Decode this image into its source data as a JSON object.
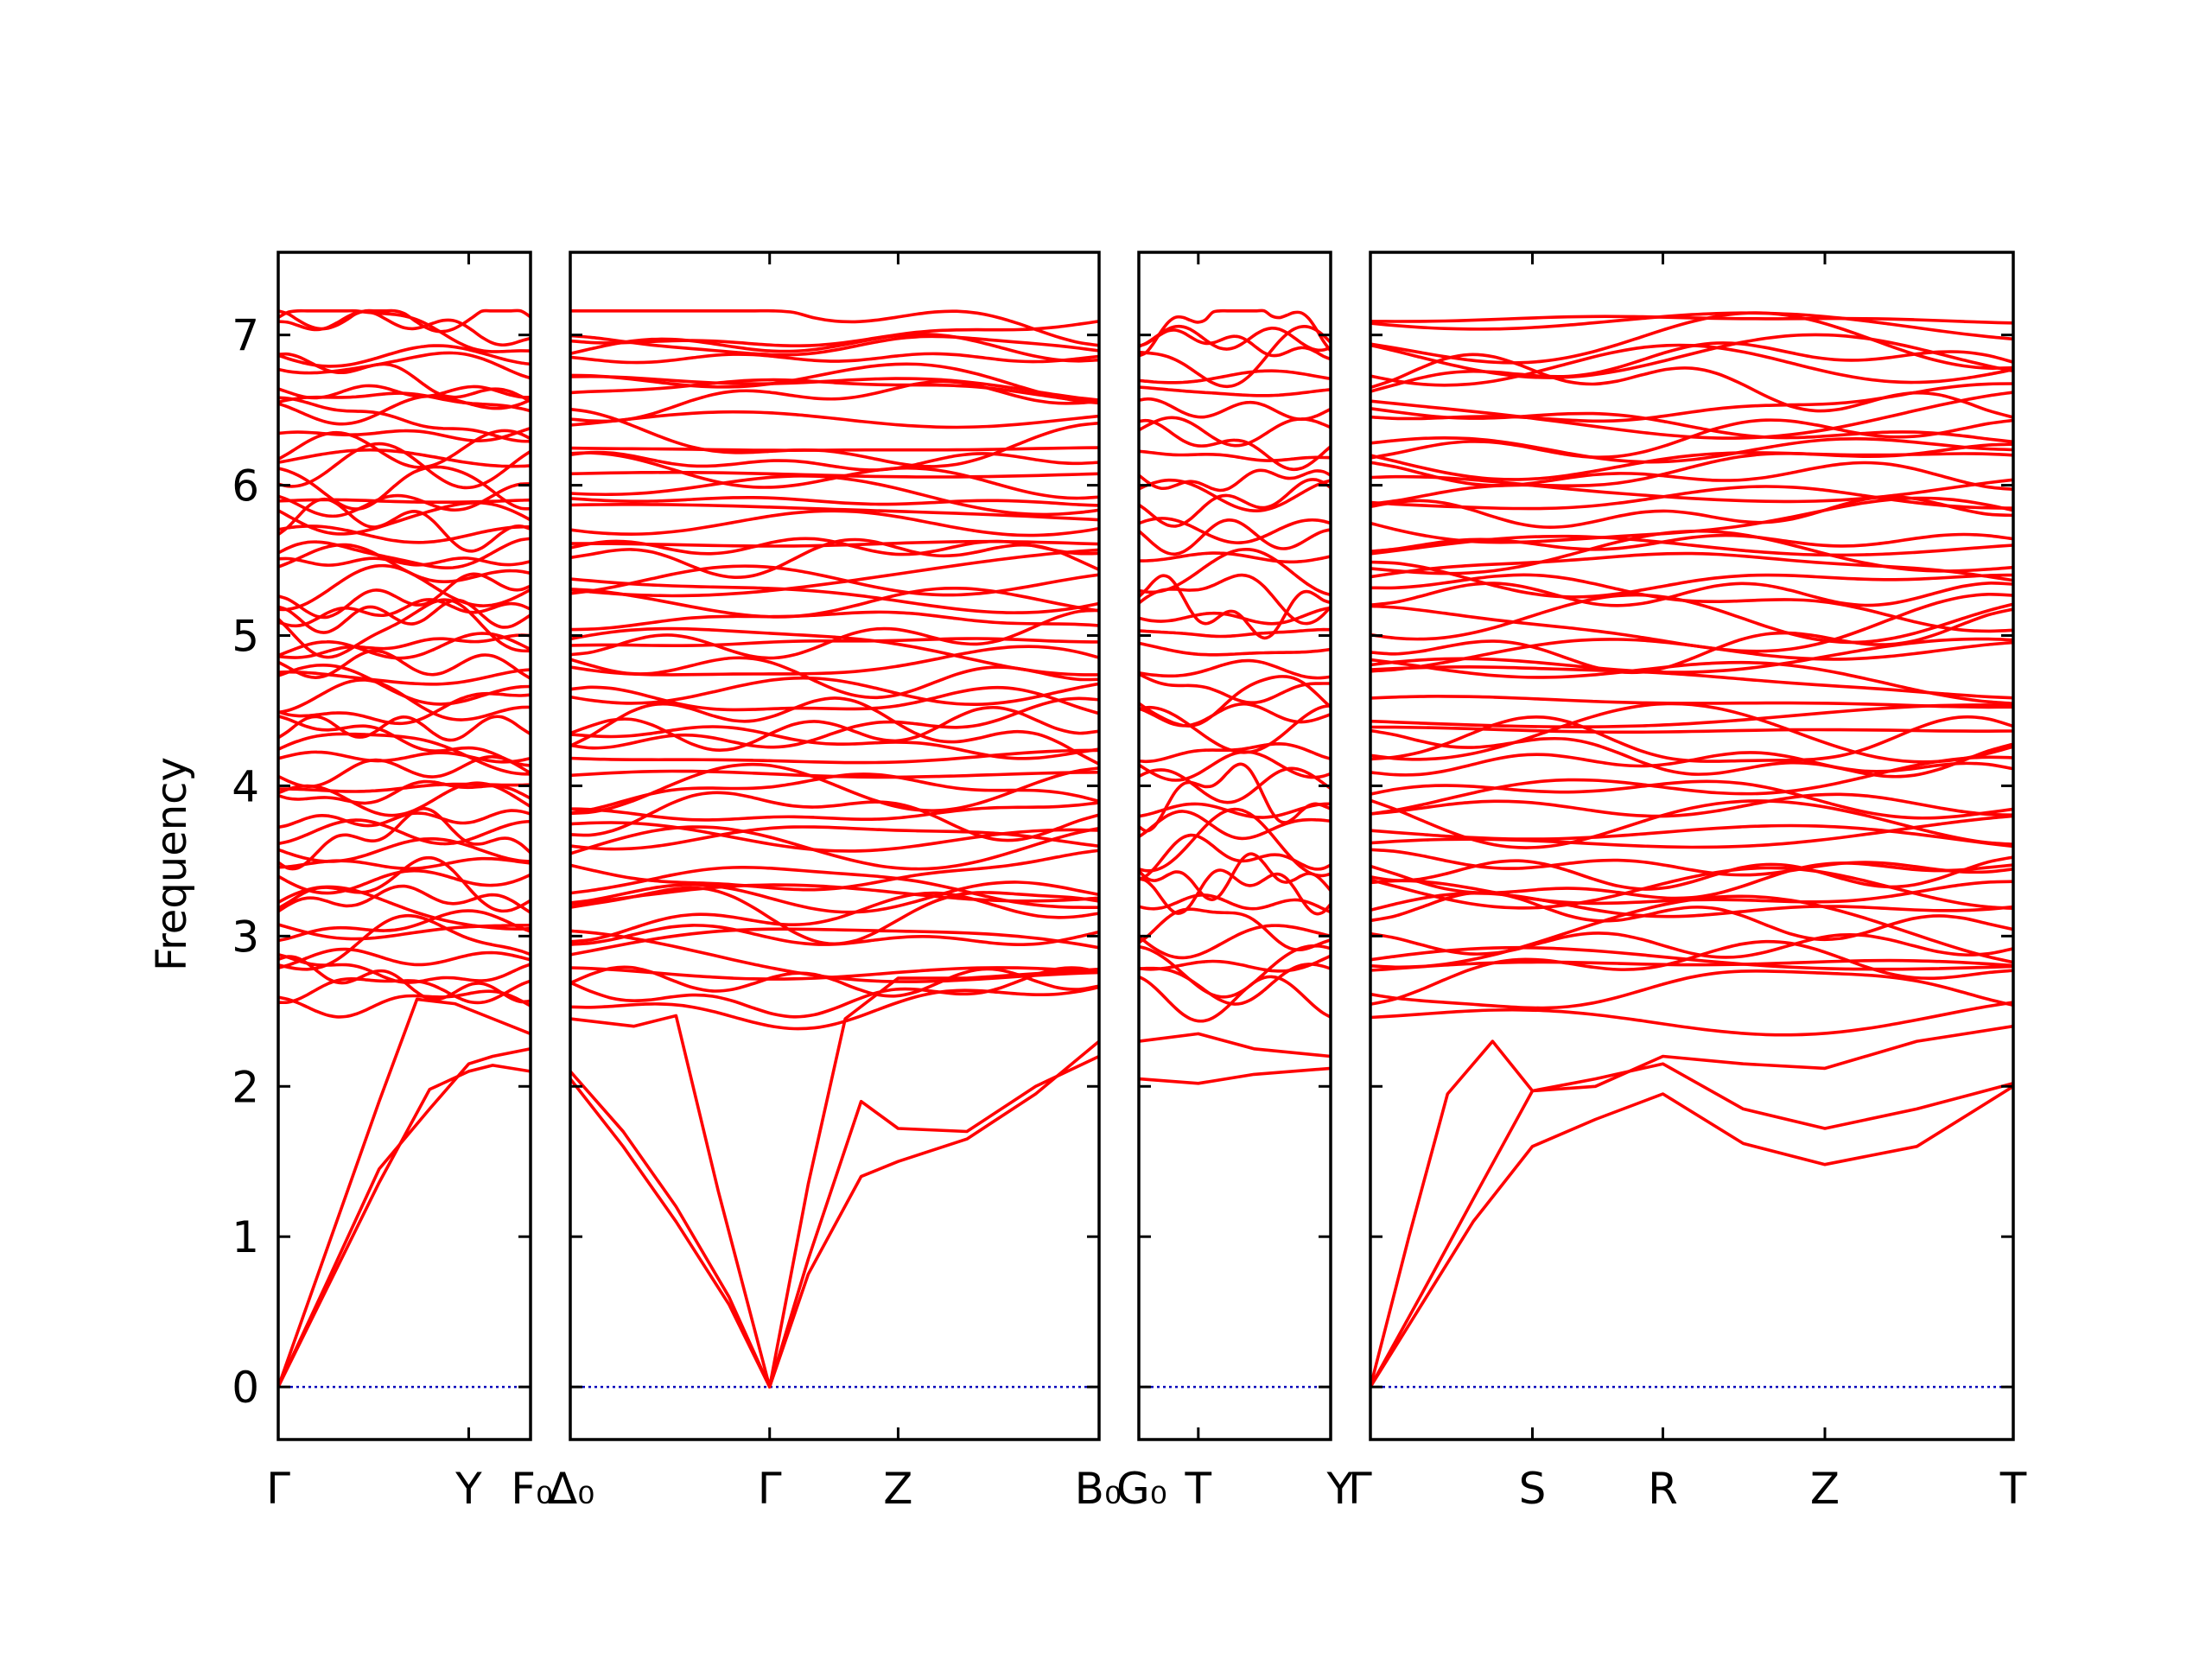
{
  "chart_data": {
    "type": "line",
    "title": "",
    "xlabel": "",
    "ylabel": "Frequency",
    "ylim": [
      -0.35,
      7.55
    ],
    "yticks": [
      0,
      1,
      2,
      3,
      4,
      5,
      6,
      7
    ],
    "grid": false,
    "legend": "none",
    "band_color": "#ff0000",
    "zero_line_color": "#0000bb",
    "segments": [
      {
        "labels": [
          {
            "name": "Gamma",
            "text": "Γ",
            "pos": 0.0
          },
          {
            "name": "Y",
            "text": "Y",
            "pos": 0.755
          },
          {
            "name": "F0",
            "text": "F₀",
            "pos": 1.0
          }
        ],
        "lowest_bands": [
          {
            "x": [
              0,
              0.2,
              0.4,
              0.6,
              0.755,
              0.85,
              1.0
            ],
            "y": [
              0.0,
              0.68,
              1.36,
              1.98,
              2.1,
              2.14,
              2.1
            ]
          },
          {
            "x": [
              0,
              0.2,
              0.4,
              0.6,
              0.755,
              0.85,
              1.0
            ],
            "y": [
              0.0,
              0.72,
              1.45,
              1.85,
              2.15,
              2.2,
              2.25
            ]
          },
          {
            "x": [
              0,
              0.2,
              0.4,
              0.55,
              0.7,
              0.85,
              1.0
            ],
            "y": [
              0.0,
              0.95,
              1.9,
              2.58,
              2.55,
              2.45,
              2.35
            ]
          }
        ]
      },
      {
        "labels": [
          {
            "name": "Delta0",
            "text": "Δ₀",
            "pos": 0.0
          },
          {
            "name": "Gamma",
            "text": "Γ",
            "pos": 0.377
          },
          {
            "name": "Z",
            "text": "Z",
            "pos": 0.62
          },
          {
            "name": "B0",
            "text": "B₀",
            "pos": 1.0
          }
        ],
        "lowest_bands": [
          {
            "x": [
              0,
              0.1,
              0.2,
              0.3,
              0.377,
              0.45,
              0.55,
              0.62,
              0.75,
              0.88,
              1.0
            ],
            "y": [
              2.1,
              1.7,
              1.2,
              0.6,
              0.0,
              0.75,
              1.4,
              1.5,
              1.65,
              1.95,
              2.3
            ]
          },
          {
            "x": [
              0,
              0.1,
              0.2,
              0.3,
              0.377,
              0.45,
              0.55,
              0.62,
              0.75,
              0.88,
              1.0
            ],
            "y": [
              2.05,
              1.6,
              1.1,
              0.55,
              0.0,
              0.85,
              1.9,
              1.72,
              1.7,
              2.0,
              2.2
            ]
          },
          {
            "x": [
              0,
              0.12,
              0.2,
              0.28,
              0.377,
              0.45,
              0.52,
              0.62,
              0.75,
              0.88,
              1.0
            ],
            "y": [
              2.45,
              2.4,
              2.47,
              1.3,
              0.0,
              1.35,
              2.45,
              2.72,
              2.72,
              2.75,
              2.78
            ]
          }
        ]
      },
      {
        "labels": [
          {
            "name": "G0",
            "text": "G₀",
            "pos": 0.0
          },
          {
            "name": "T",
            "text": "T",
            "pos": 0.31
          },
          {
            "name": "Y",
            "text": "Y",
            "pos": 1.0
          }
        ],
        "lowest_bands": [
          {
            "x": [
              0,
              0.31,
              0.6,
              1.0
            ],
            "y": [
              2.05,
              2.02,
              2.08,
              2.12
            ]
          },
          {
            "x": [
              0,
              0.31,
              0.6,
              1.0
            ],
            "y": [
              2.3,
              2.35,
              2.25,
              2.2
            ]
          }
        ]
      },
      {
        "labels": [
          {
            "name": "Gamma",
            "text": "Γ",
            "pos": 0.0
          },
          {
            "name": "S",
            "text": "S",
            "pos": 0.252
          },
          {
            "name": "R",
            "text": "R",
            "pos": 0.455
          },
          {
            "name": "Z",
            "text": "Z",
            "pos": 0.707
          },
          {
            "name": "T",
            "text": "T",
            "pos": 1.0
          }
        ],
        "lowest_bands": [
          {
            "x": [
              0,
              0.08,
              0.16,
              0.252,
              0.35,
              0.455,
              0.58,
              0.707,
              0.85,
              1.0
            ],
            "y": [
              0.0,
              0.55,
              1.1,
              1.6,
              1.78,
              1.95,
              1.62,
              1.48,
              1.6,
              2.0
            ]
          },
          {
            "x": [
              0,
              0.08,
              0.16,
              0.252,
              0.35,
              0.455,
              0.58,
              0.707,
              0.85,
              1.0
            ],
            "y": [
              0.0,
              0.62,
              1.25,
              1.97,
              2.05,
              2.15,
              1.85,
              1.72,
              1.85,
              2.02
            ]
          },
          {
            "x": [
              0,
              0.06,
              0.12,
              0.19,
              0.252,
              0.35,
              0.455,
              0.58,
              0.707,
              0.85,
              1.0
            ],
            "y": [
              0.0,
              1.0,
              1.95,
              2.3,
              1.97,
              2.0,
              2.2,
              2.15,
              2.12,
              2.3,
              2.4
            ]
          }
        ]
      }
    ]
  }
}
